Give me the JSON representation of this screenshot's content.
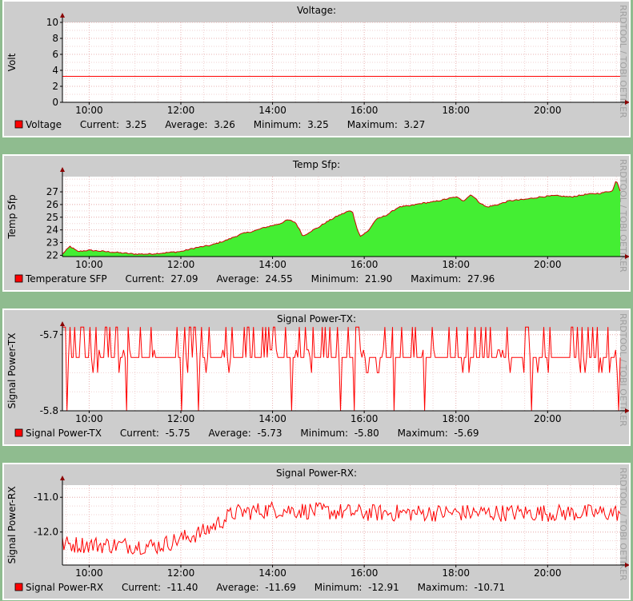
{
  "side_label": "RRDTOOL / TOBI OETIKER",
  "x_ticks": [
    "10:00",
    "12:00",
    "14:00",
    "16:00",
    "18:00",
    "20:00"
  ],
  "chart_data": [
    {
      "type": "line",
      "title": "Voltage:",
      "ylabel": "Volt",
      "ylim": [
        0,
        10
      ],
      "yticks": [
        0,
        2,
        4,
        6,
        8,
        10
      ],
      "ytick_labels": [
        "0",
        "2",
        "4",
        "6",
        "8",
        "10"
      ],
      "x_range": [
        "09:25",
        "21:35"
      ],
      "series": [
        {
          "name": "Voltage",
          "color": "#ff0000",
          "points": [
            [
              "09:25",
              3.25
            ],
            [
              "12:00",
              3.26
            ],
            [
              "15:00",
              3.27
            ],
            [
              "18:00",
              3.26
            ],
            [
              "21:35",
              3.25
            ]
          ]
        }
      ],
      "stats": {
        "current": "3.25",
        "average": "3.26",
        "minimum": "3.25",
        "maximum": "3.27"
      },
      "legend_labels": {
        "current": "Current:",
        "average": "Average:",
        "minimum": "Minimum:",
        "maximum": "Maximum:"
      }
    },
    {
      "type": "area",
      "title": "Temp Sfp:",
      "ylabel": "Temp Sfp",
      "ylim": [
        21.9,
        28.2
      ],
      "yticks": [
        22,
        23,
        24,
        25,
        26,
        27
      ],
      "ytick_labels": [
        "22",
        "23",
        "24",
        "25",
        "26",
        "27"
      ],
      "x_range": [
        "09:25",
        "21:35"
      ],
      "series": [
        {
          "name": "Temperature SFP",
          "color": "#ff0000",
          "fill": "#44ee33",
          "points": [
            [
              "09:25",
              22.1
            ],
            [
              "09:35",
              22.7
            ],
            [
              "09:45",
              22.3
            ],
            [
              "10:00",
              22.4
            ],
            [
              "10:20",
              22.3
            ],
            [
              "10:40",
              22.2
            ],
            [
              "11:00",
              22.1
            ],
            [
              "11:20",
              22.1
            ],
            [
              "11:40",
              22.2
            ],
            [
              "12:00",
              22.3
            ],
            [
              "12:20",
              22.6
            ],
            [
              "12:40",
              22.8
            ],
            [
              "13:00",
              23.2
            ],
            [
              "13:20",
              23.7
            ],
            [
              "13:35",
              23.9
            ],
            [
              "13:50",
              24.2
            ],
            [
              "14:10",
              24.5
            ],
            [
              "14:20",
              24.8
            ],
            [
              "14:30",
              24.6
            ],
            [
              "14:40",
              23.5
            ],
            [
              "14:50",
              23.9
            ],
            [
              "15:00",
              24.2
            ],
            [
              "15:10",
              24.6
            ],
            [
              "15:25",
              25.1
            ],
            [
              "15:40",
              25.5
            ],
            [
              "15:45",
              25.4
            ],
            [
              "15:50",
              24.2
            ],
            [
              "15:55",
              23.5
            ],
            [
              "16:05",
              23.9
            ],
            [
              "16:15",
              24.8
            ],
            [
              "16:30",
              25.2
            ],
            [
              "16:45",
              25.8
            ],
            [
              "17:00",
              25.9
            ],
            [
              "17:15",
              26.1
            ],
            [
              "17:30",
              26.2
            ],
            [
              "17:45",
              26.4
            ],
            [
              "18:00",
              26.6
            ],
            [
              "18:10",
              26.3
            ],
            [
              "18:20",
              26.8
            ],
            [
              "18:30",
              26.2
            ],
            [
              "18:40",
              25.8
            ],
            [
              "18:55",
              26.0
            ],
            [
              "19:10",
              26.3
            ],
            [
              "19:30",
              26.4
            ],
            [
              "19:50",
              26.6
            ],
            [
              "20:10",
              26.7
            ],
            [
              "20:30",
              26.6
            ],
            [
              "20:50",
              26.8
            ],
            [
              "21:10",
              26.9
            ],
            [
              "21:25",
              27.1
            ],
            [
              "21:30",
              27.96
            ],
            [
              "21:35",
              27.09
            ]
          ]
        }
      ],
      "stats": {
        "current": "27.09",
        "average": "24.55",
        "minimum": "21.90",
        "maximum": "27.96"
      },
      "legend_labels": {
        "current": "Current:",
        "average": "Average:",
        "minimum": "Minimum:",
        "maximum": "Maximum:"
      }
    },
    {
      "type": "line",
      "title": "Signal Power-TX:",
      "ylabel": "Signal Power-TX",
      "ylim": [
        -5.8,
        -5.695
      ],
      "yticks": [
        -5.8,
        -5.7
      ],
      "ytick_labels": [
        "-5.8",
        "-5.7"
      ],
      "x_range": [
        "09:25",
        "21:35"
      ],
      "series": [
        {
          "name": "Signal Power-TX",
          "color": "#ff0000",
          "levels": [
            -5.69,
            -5.73,
            -5.75,
            -5.8
          ],
          "base": -5.73,
          "noise": "spiky"
        }
      ],
      "stats": {
        "current": "-5.75",
        "average": "-5.73",
        "minimum": "-5.80",
        "maximum": "-5.69"
      },
      "legend_labels": {
        "current": "Current:",
        "average": "Average:",
        "minimum": "Minimum:",
        "maximum": "Maximum:"
      }
    },
    {
      "type": "line",
      "title": "Signal Power-RX:",
      "ylabel": "Signal Power-RX",
      "ylim": [
        -12.95,
        -10.65
      ],
      "yticks": [
        -12.0,
        -11.0
      ],
      "ytick_labels": [
        "-12.0",
        "-11.0"
      ],
      "x_range": [
        "09:25",
        "21:35"
      ],
      "series": [
        {
          "name": "Signal Power-RX",
          "color": "#ff0000",
          "trend": [
            [
              "09:25",
              -12.35
            ],
            [
              "11:30",
              -12.4
            ],
            [
              "12:30",
              -12.0
            ],
            [
              "13:10",
              -11.45
            ],
            [
              "14:00",
              -11.35
            ],
            [
              "16:00",
              -11.45
            ],
            [
              "21:35",
              -11.45
            ]
          ],
          "noise": 0.25
        }
      ],
      "stats": {
        "current": "-11.40",
        "average": "-11.69",
        "minimum": "-12.91",
        "maximum": "-10.71"
      },
      "legend_labels": {
        "current": "Current:",
        "average": "Average:",
        "minimum": "Minimum:",
        "maximum": "Maximum:"
      }
    }
  ]
}
